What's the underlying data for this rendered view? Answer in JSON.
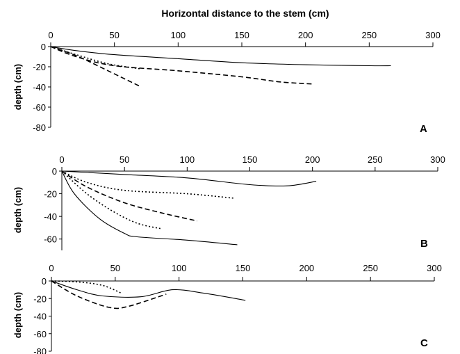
{
  "figure": {
    "title": "Horizontal distance to the stem (cm)"
  },
  "chart_data": [
    {
      "type": "line",
      "panel_label": "A",
      "ylabel": "depth (cm)",
      "xlim": [
        0,
        300
      ],
      "ylim": [
        -80,
        0
      ],
      "x_ticks": [
        "0",
        "50",
        "100",
        "150",
        "200",
        "250",
        "300"
      ],
      "y_ticks": [
        "0",
        "-20",
        "-40",
        "-60",
        "-80"
      ],
      "series": [
        {
          "style": "solid",
          "points": [
            [
              0,
              0
            ],
            [
              20,
              -4
            ],
            [
              50,
              -8
            ],
            [
              100,
              -12
            ],
            [
              150,
              -16
            ],
            [
              200,
              -18
            ],
            [
              250,
              -19
            ],
            [
              267,
              -19
            ]
          ]
        },
        {
          "style": "dash",
          "points": [
            [
              0,
              0
            ],
            [
              20,
              -10
            ],
            [
              50,
              -19
            ],
            [
              100,
              -24
            ],
            [
              150,
              -30
            ],
            [
              180,
              -35
            ],
            [
              205,
              -37
            ]
          ]
        },
        {
          "style": "dot",
          "points": [
            [
              0,
              0
            ],
            [
              20,
              -8
            ],
            [
              45,
              -17
            ],
            [
              70,
              -22
            ]
          ]
        },
        {
          "style": "dash",
          "points": [
            [
              0,
              0
            ],
            [
              20,
              -9
            ],
            [
              45,
              -24
            ],
            [
              71,
              -40
            ]
          ]
        }
      ]
    },
    {
      "type": "line",
      "panel_label": "B",
      "ylabel": "depth (cm)",
      "xlim": [
        0,
        300
      ],
      "ylim": [
        -70,
        0
      ],
      "x_ticks": [
        "0",
        "50",
        "100",
        "150",
        "200",
        "250",
        "300"
      ],
      "y_ticks": [
        "0",
        "-20",
        "-40",
        "-60"
      ],
      "series": [
        {
          "style": "solid",
          "points": [
            [
              0,
              0
            ],
            [
              50,
              -3
            ],
            [
              100,
              -6
            ],
            [
              150,
              -12
            ],
            [
              180,
              -13
            ],
            [
              203,
              -9
            ]
          ]
        },
        {
          "style": "dot",
          "points": [
            [
              0,
              0
            ],
            [
              20,
              -10
            ],
            [
              50,
              -17
            ],
            [
              100,
              -20
            ],
            [
              138,
              -24
            ]
          ]
        },
        {
          "style": "dash",
          "points": [
            [
              0,
              0
            ],
            [
              20,
              -14
            ],
            [
              50,
              -28
            ],
            [
              80,
              -37
            ],
            [
              108,
              -44
            ]
          ]
        },
        {
          "style": "dot",
          "points": [
            [
              0,
              0
            ],
            [
              20,
              -20
            ],
            [
              40,
              -35
            ],
            [
              60,
              -46
            ],
            [
              80,
              -51
            ]
          ]
        },
        {
          "style": "solid",
          "points": [
            [
              0,
              0
            ],
            [
              10,
              -20
            ],
            [
              30,
              -42
            ],
            [
              50,
              -55
            ],
            [
              60,
              -58
            ],
            [
              100,
              -61
            ],
            [
              140,
              -65
            ]
          ]
        }
      ]
    },
    {
      "type": "line",
      "panel_label": "C",
      "ylabel": "depth (cm)",
      "xlim": [
        0,
        300
      ],
      "ylim": [
        -80,
        0
      ],
      "x_ticks": [
        "0",
        "50",
        "100",
        "150",
        "200",
        "250",
        "300"
      ],
      "y_ticks": [
        "0",
        "-20",
        "-40",
        "-60",
        "-80"
      ],
      "series": [
        {
          "style": "dot",
          "points": [
            [
              0,
              0
            ],
            [
              20,
              -1
            ],
            [
              40,
              -5
            ],
            [
              55,
              -14
            ]
          ]
        },
        {
          "style": "solid",
          "points": [
            [
              0,
              0
            ],
            [
              20,
              -10
            ],
            [
              40,
              -17
            ],
            [
              70,
              -18
            ],
            [
              95,
              -10
            ],
            [
              120,
              -14
            ],
            [
              152,
              -22
            ]
          ]
        },
        {
          "style": "dash",
          "points": [
            [
              0,
              0
            ],
            [
              20,
              -17
            ],
            [
              45,
              -30
            ],
            [
              60,
              -29
            ],
            [
              90,
              -15
            ]
          ]
        }
      ]
    }
  ]
}
